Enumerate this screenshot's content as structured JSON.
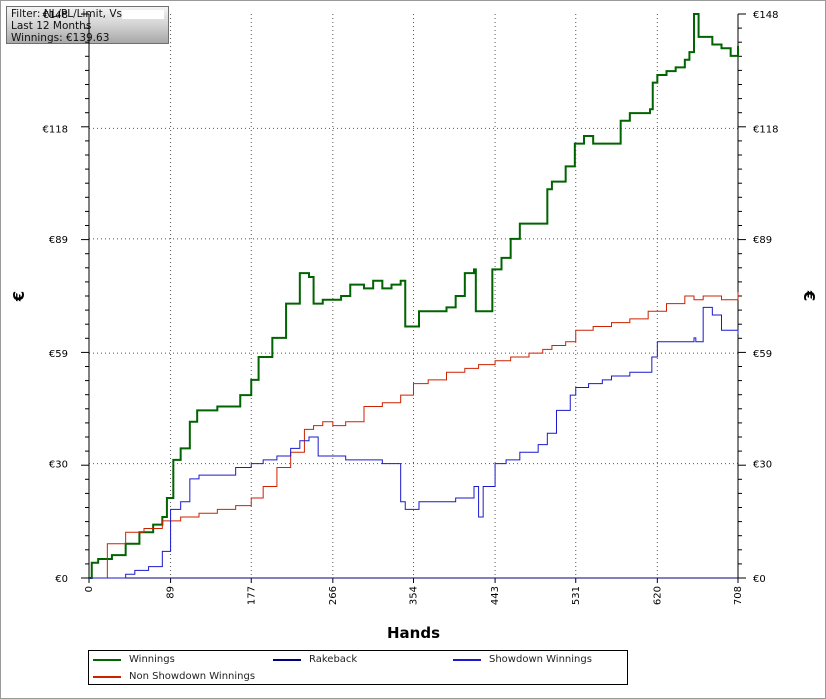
{
  "filter": {
    "line1": "Filter: NL/PL/Limit, Vs",
    "line2": "Last  12 Months",
    "line3": "Winnings: €139.63"
  },
  "chart_data": {
    "type": "line",
    "xlabel": "Hands",
    "ylabel": "€",
    "xlim": [
      0,
      708
    ],
    "ylim": [
      0,
      148
    ],
    "x_ticks": [
      0,
      89,
      177,
      266,
      354,
      443,
      531,
      620,
      708
    ],
    "y_tick_labels": [
      "€0",
      "€30",
      "€59",
      "€89",
      "€118",
      "€148"
    ],
    "y_tick_values": [
      0,
      30,
      59,
      89,
      118,
      148
    ],
    "grid": true,
    "legend_position": "bottom",
    "series": [
      {
        "name": "Winnings",
        "color": "#006400",
        "x": [
          0,
          3,
          10,
          25,
          40,
          55,
          70,
          80,
          85,
          89,
          92,
          100,
          110,
          118,
          125,
          140,
          160,
          165,
          177,
          185,
          200,
          215,
          230,
          240,
          245,
          255,
          266,
          275,
          285,
          300,
          310,
          320,
          330,
          340,
          345,
          350,
          360,
          375,
          390,
          400,
          410,
          420,
          422,
          425,
          430,
          440,
          450,
          460,
          470,
          485,
          497,
          500,
          505,
          520,
          530,
          540,
          550,
          560,
          580,
          590,
          600,
          612,
          615,
          620,
          630,
          640,
          650,
          655,
          660,
          665,
          670,
          680,
          690,
          700,
          708
        ],
        "values": [
          0,
          4,
          5,
          6,
          9,
          12,
          14,
          16,
          21,
          21,
          31,
          34,
          41,
          44,
          44,
          45,
          45,
          48,
          52,
          58,
          63,
          72,
          80,
          79,
          72,
          73,
          73,
          74,
          77,
          76,
          78,
          76,
          77,
          78,
          66,
          66,
          70,
          70,
          71,
          74,
          80,
          81,
          70,
          70,
          70,
          81,
          84,
          89,
          93,
          93,
          93,
          102,
          104,
          108,
          114,
          116,
          114,
          114,
          120,
          122,
          122,
          123,
          130,
          132,
          133,
          134,
          136,
          138,
          148,
          142,
          142,
          140,
          139,
          137,
          139.63
        ]
      },
      {
        "name": "Non Showdown Winnings",
        "color": "#cc2200",
        "x": [
          0,
          20,
          40,
          60,
          80,
          100,
          120,
          140,
          160,
          177,
          190,
          205,
          220,
          235,
          245,
          255,
          266,
          280,
          300,
          320,
          340,
          354,
          370,
          390,
          410,
          425,
          443,
          460,
          480,
          495,
          505,
          520,
          531,
          550,
          570,
          590,
          610,
          630,
          650,
          660,
          670,
          690,
          708
        ],
        "values": [
          0,
          9,
          12,
          13,
          15,
          16,
          17,
          18,
          19,
          21,
          24,
          29,
          33,
          39,
          40,
          41,
          40,
          41,
          45,
          46,
          48,
          51,
          52,
          54,
          55,
          56,
          57,
          58,
          59,
          60,
          61,
          62,
          65,
          66,
          67,
          68,
          70,
          72,
          74,
          73,
          74,
          73,
          75
        ]
      },
      {
        "name": "Rakeback",
        "color": "#000080",
        "x": [
          0,
          708
        ],
        "values": [
          0,
          0
        ]
      },
      {
        "name": "Showdown Winnings",
        "color": "#1a1acc",
        "x": [
          0,
          30,
          40,
          50,
          65,
          80,
          89,
          100,
          110,
          120,
          140,
          160,
          177,
          190,
          205,
          220,
          230,
          240,
          250,
          266,
          280,
          300,
          320,
          340,
          345,
          354,
          360,
          370,
          385,
          400,
          410,
          420,
          425,
          430,
          440,
          443,
          455,
          470,
          480,
          490,
          500,
          510,
          525,
          531,
          545,
          560,
          570,
          590,
          610,
          614,
          620,
          640,
          660,
          662,
          670,
          680,
          690,
          700,
          708
        ],
        "values": [
          0,
          0,
          1,
          2,
          3,
          7,
          18,
          20,
          26,
          27,
          27,
          29,
          30,
          31,
          32,
          34,
          36,
          37,
          32,
          32,
          31,
          31,
          30,
          20,
          18,
          18,
          20,
          20,
          20,
          21,
          21,
          24,
          16,
          24,
          24,
          30,
          31,
          33,
          33,
          35,
          38,
          44,
          48,
          50,
          51,
          52,
          53,
          54,
          54,
          58,
          62,
          62,
          63,
          62,
          71,
          69,
          65,
          65,
          64
        ]
      }
    ]
  },
  "legend": {
    "items": [
      {
        "label": "Winnings",
        "color": "#006400"
      },
      {
        "label": "Rakeback",
        "color": "#000080"
      },
      {
        "label": "Showdown Winnings",
        "color": "#1a1acc"
      },
      {
        "label": "Non Showdown Winnings",
        "color": "#cc2200"
      }
    ]
  }
}
